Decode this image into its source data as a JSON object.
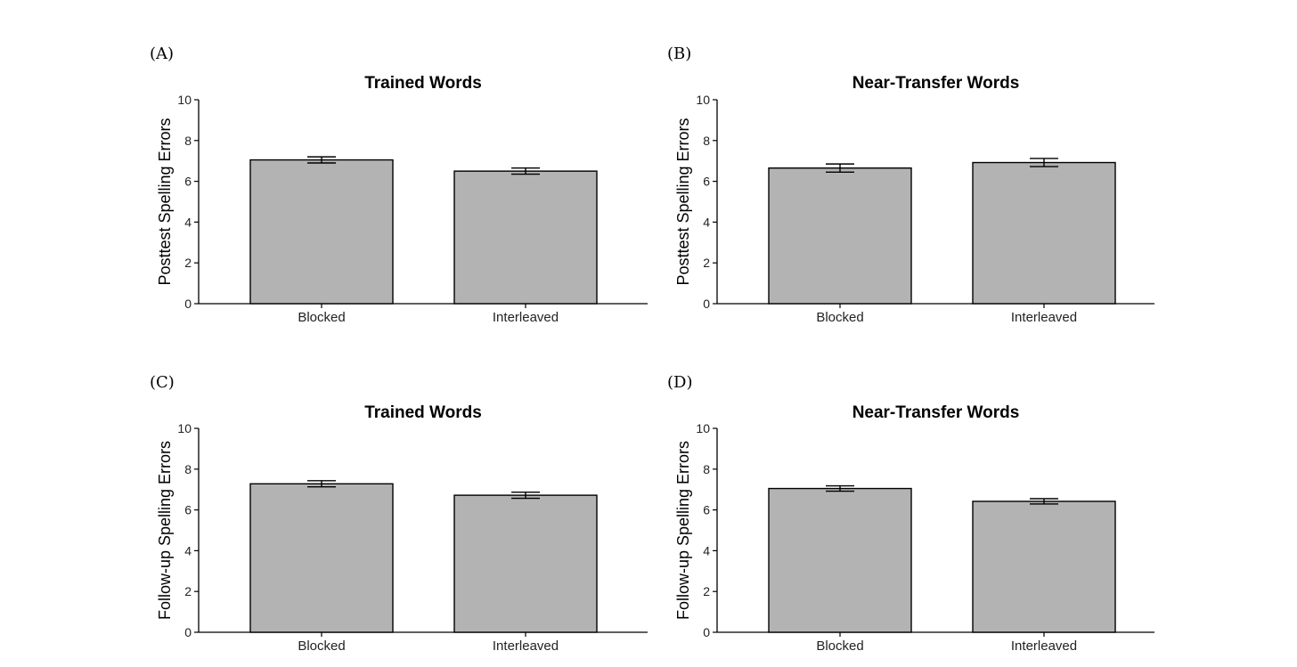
{
  "colors": {
    "bar_fill": "#b3b3b3",
    "bar_stroke": "#000000"
  },
  "chart_data": [
    {
      "type": "bar",
      "panel_label": "(A)",
      "title": "Trained Words",
      "ylabel": "Posttest Spelling Errors",
      "xlabel": "",
      "categories": [
        "Blocked",
        "Interleaved"
      ],
      "values": [
        7.05,
        6.5
      ],
      "error": [
        0.15,
        0.15
      ],
      "ylim": [
        0,
        10
      ],
      "yticks": [
        0,
        2,
        4,
        6,
        8,
        10
      ],
      "grid": false
    },
    {
      "type": "bar",
      "panel_label": "(B)",
      "title": "Near-Transfer Words",
      "ylabel": "Posttest Spelling Errors",
      "xlabel": "",
      "categories": [
        "Blocked",
        "Interleaved"
      ],
      "values": [
        6.65,
        6.92
      ],
      "error": [
        0.2,
        0.2
      ],
      "ylim": [
        0,
        10
      ],
      "yticks": [
        0,
        2,
        4,
        6,
        8,
        10
      ],
      "grid": false
    },
    {
      "type": "bar",
      "panel_label": "(C)",
      "title": "Trained Words",
      "ylabel": "Follow-up Spelling Errors",
      "xlabel": "",
      "categories": [
        "Blocked",
        "Interleaved"
      ],
      "values": [
        7.28,
        6.72
      ],
      "error": [
        0.15,
        0.15
      ],
      "ylim": [
        0,
        10
      ],
      "yticks": [
        0,
        2,
        4,
        6,
        8,
        10
      ],
      "grid": false
    },
    {
      "type": "bar",
      "panel_label": "(D)",
      "title": "Near-Transfer Words",
      "ylabel": "Follow-up Spelling Errors",
      "xlabel": "",
      "categories": [
        "Blocked",
        "Interleaved"
      ],
      "values": [
        7.05,
        6.42
      ],
      "error": [
        0.13,
        0.13
      ],
      "ylim": [
        0,
        10
      ],
      "yticks": [
        0,
        2,
        4,
        6,
        8,
        10
      ],
      "grid": false
    }
  ]
}
